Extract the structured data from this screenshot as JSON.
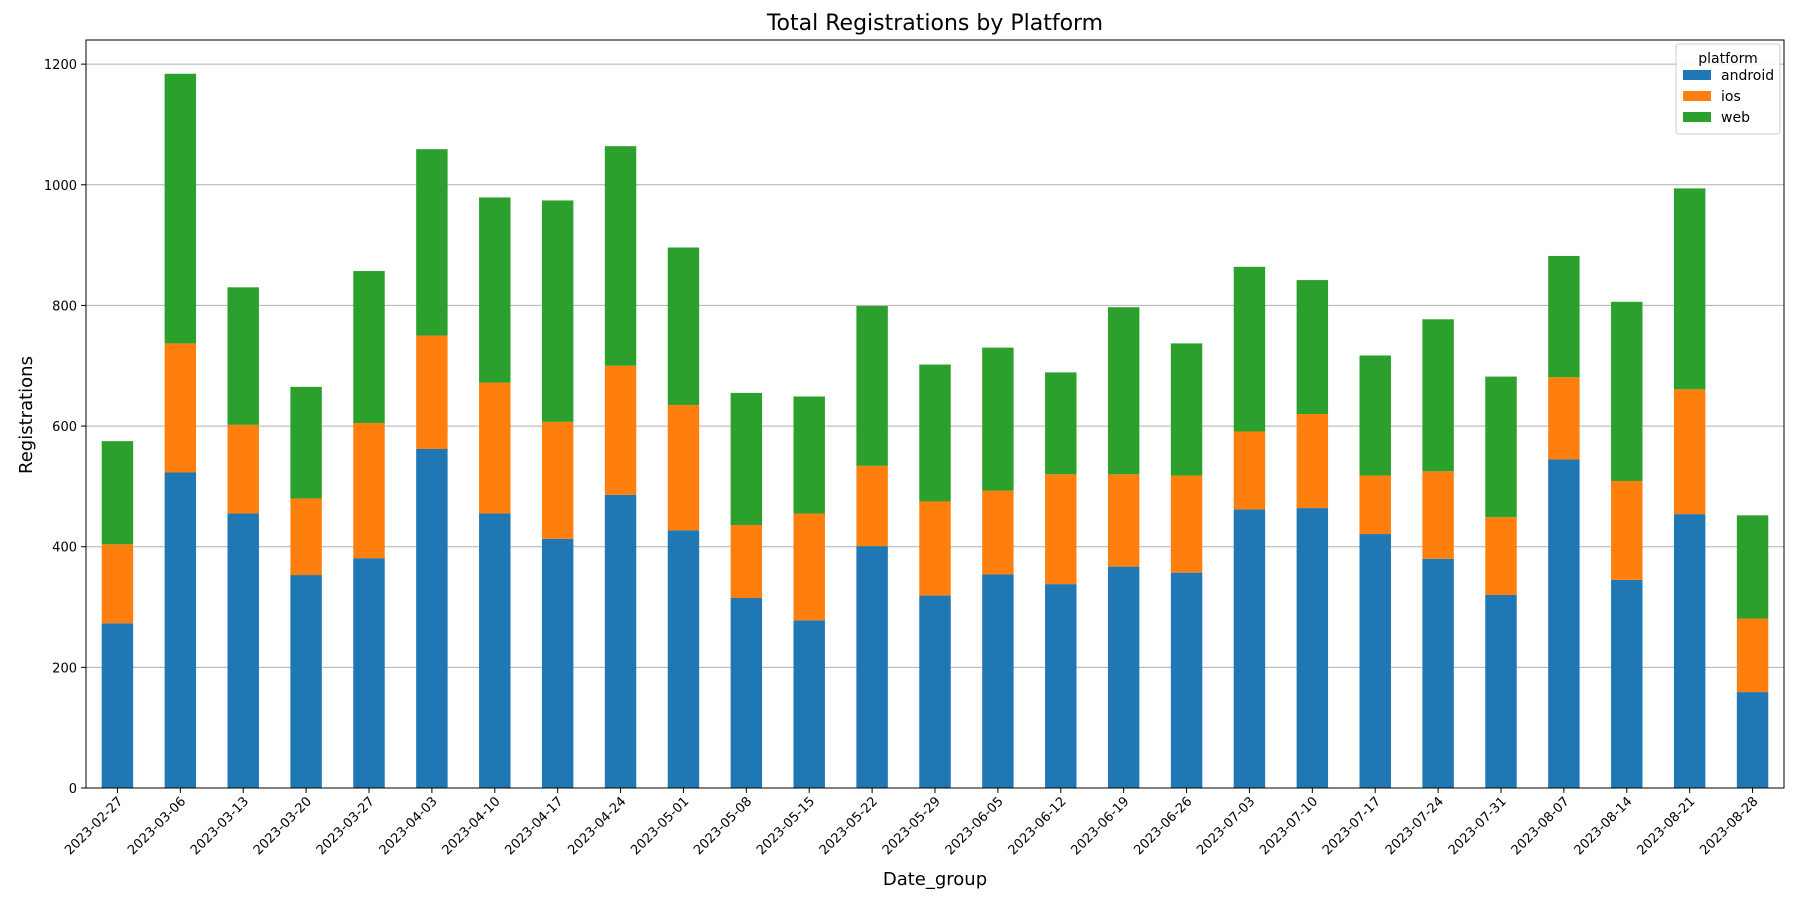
{
  "chart_data": {
    "type": "bar",
    "stacked": true,
    "title": "Total Registrations by Platform",
    "xlabel": "Date_group",
    "ylabel": "Registrations",
    "ylim": [
      0,
      1240
    ],
    "yticks": [
      0,
      200,
      400,
      600,
      800,
      1000,
      1200
    ],
    "grid": "y",
    "legend_title": "platform",
    "legend_position": "top-right",
    "categories": [
      "2023-02-27",
      "2023-03-06",
      "2023-03-13",
      "2023-03-20",
      "2023-03-27",
      "2023-04-03",
      "2023-04-10",
      "2023-04-17",
      "2023-04-24",
      "2023-05-01",
      "2023-05-08",
      "2023-05-15",
      "2023-05-22",
      "2023-05-29",
      "2023-06-05",
      "2023-06-12",
      "2023-06-19",
      "2023-06-26",
      "2023-07-03",
      "2023-07-10",
      "2023-07-17",
      "2023-07-24",
      "2023-07-31",
      "2023-08-07",
      "2023-08-14",
      "2023-08-21",
      "2023-08-28"
    ],
    "series": [
      {
        "name": "android",
        "color": "#1f77b4",
        "values": [
          273,
          523,
          455,
          353,
          381,
          562,
          455,
          413,
          486,
          427,
          315,
          278,
          401,
          319,
          354,
          338,
          367,
          357,
          462,
          464,
          421,
          380,
          320,
          545,
          345,
          454,
          159
        ]
      },
      {
        "name": "ios",
        "color": "#ff7f0e",
        "values": [
          131,
          214,
          147,
          127,
          224,
          188,
          217,
          194,
          214,
          208,
          121,
          177,
          133,
          156,
          139,
          182,
          153,
          161,
          129,
          156,
          97,
          145,
          129,
          136,
          164,
          207,
          122
        ]
      },
      {
        "name": "web",
        "color": "#2ca02c",
        "values": [
          171,
          447,
          228,
          185,
          252,
          309,
          307,
          367,
          364,
          261,
          219,
          194,
          265,
          227,
          237,
          169,
          277,
          219,
          273,
          222,
          199,
          252,
          233,
          201,
          297,
          333,
          171
        ]
      }
    ]
  }
}
